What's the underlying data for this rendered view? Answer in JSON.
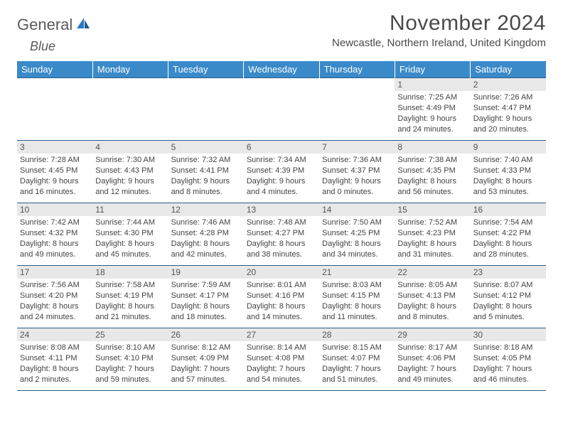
{
  "brand": {
    "word1": "General",
    "word2": "Blue"
  },
  "title": "November 2024",
  "location": "Newcastle, Northern Ireland, United Kingdom",
  "colors": {
    "header_bg": "#3a8ac9",
    "border": "#2a5d8a",
    "daynum_bg": "#e8e8e8",
    "text": "#444"
  },
  "weekdays": [
    "Sunday",
    "Monday",
    "Tuesday",
    "Wednesday",
    "Thursday",
    "Friday",
    "Saturday"
  ],
  "weeks": [
    [
      {
        "n": "",
        "sr": "",
        "ss": "",
        "dl": ""
      },
      {
        "n": "",
        "sr": "",
        "ss": "",
        "dl": ""
      },
      {
        "n": "",
        "sr": "",
        "ss": "",
        "dl": ""
      },
      {
        "n": "",
        "sr": "",
        "ss": "",
        "dl": ""
      },
      {
        "n": "",
        "sr": "",
        "ss": "",
        "dl": ""
      },
      {
        "n": "1",
        "sr": "Sunrise: 7:25 AM",
        "ss": "Sunset: 4:49 PM",
        "dl": "Daylight: 9 hours and 24 minutes."
      },
      {
        "n": "2",
        "sr": "Sunrise: 7:26 AM",
        "ss": "Sunset: 4:47 PM",
        "dl": "Daylight: 9 hours and 20 minutes."
      }
    ],
    [
      {
        "n": "3",
        "sr": "Sunrise: 7:28 AM",
        "ss": "Sunset: 4:45 PM",
        "dl": "Daylight: 9 hours and 16 minutes."
      },
      {
        "n": "4",
        "sr": "Sunrise: 7:30 AM",
        "ss": "Sunset: 4:43 PM",
        "dl": "Daylight: 9 hours and 12 minutes."
      },
      {
        "n": "5",
        "sr": "Sunrise: 7:32 AM",
        "ss": "Sunset: 4:41 PM",
        "dl": "Daylight: 9 hours and 8 minutes."
      },
      {
        "n": "6",
        "sr": "Sunrise: 7:34 AM",
        "ss": "Sunset: 4:39 PM",
        "dl": "Daylight: 9 hours and 4 minutes."
      },
      {
        "n": "7",
        "sr": "Sunrise: 7:36 AM",
        "ss": "Sunset: 4:37 PM",
        "dl": "Daylight: 9 hours and 0 minutes."
      },
      {
        "n": "8",
        "sr": "Sunrise: 7:38 AM",
        "ss": "Sunset: 4:35 PM",
        "dl": "Daylight: 8 hours and 56 minutes."
      },
      {
        "n": "9",
        "sr": "Sunrise: 7:40 AM",
        "ss": "Sunset: 4:33 PM",
        "dl": "Daylight: 8 hours and 53 minutes."
      }
    ],
    [
      {
        "n": "10",
        "sr": "Sunrise: 7:42 AM",
        "ss": "Sunset: 4:32 PM",
        "dl": "Daylight: 8 hours and 49 minutes."
      },
      {
        "n": "11",
        "sr": "Sunrise: 7:44 AM",
        "ss": "Sunset: 4:30 PM",
        "dl": "Daylight: 8 hours and 45 minutes."
      },
      {
        "n": "12",
        "sr": "Sunrise: 7:46 AM",
        "ss": "Sunset: 4:28 PM",
        "dl": "Daylight: 8 hours and 42 minutes."
      },
      {
        "n": "13",
        "sr": "Sunrise: 7:48 AM",
        "ss": "Sunset: 4:27 PM",
        "dl": "Daylight: 8 hours and 38 minutes."
      },
      {
        "n": "14",
        "sr": "Sunrise: 7:50 AM",
        "ss": "Sunset: 4:25 PM",
        "dl": "Daylight: 8 hours and 34 minutes."
      },
      {
        "n": "15",
        "sr": "Sunrise: 7:52 AM",
        "ss": "Sunset: 4:23 PM",
        "dl": "Daylight: 8 hours and 31 minutes."
      },
      {
        "n": "16",
        "sr": "Sunrise: 7:54 AM",
        "ss": "Sunset: 4:22 PM",
        "dl": "Daylight: 8 hours and 28 minutes."
      }
    ],
    [
      {
        "n": "17",
        "sr": "Sunrise: 7:56 AM",
        "ss": "Sunset: 4:20 PM",
        "dl": "Daylight: 8 hours and 24 minutes."
      },
      {
        "n": "18",
        "sr": "Sunrise: 7:58 AM",
        "ss": "Sunset: 4:19 PM",
        "dl": "Daylight: 8 hours and 21 minutes."
      },
      {
        "n": "19",
        "sr": "Sunrise: 7:59 AM",
        "ss": "Sunset: 4:17 PM",
        "dl": "Daylight: 8 hours and 18 minutes."
      },
      {
        "n": "20",
        "sr": "Sunrise: 8:01 AM",
        "ss": "Sunset: 4:16 PM",
        "dl": "Daylight: 8 hours and 14 minutes."
      },
      {
        "n": "21",
        "sr": "Sunrise: 8:03 AM",
        "ss": "Sunset: 4:15 PM",
        "dl": "Daylight: 8 hours and 11 minutes."
      },
      {
        "n": "22",
        "sr": "Sunrise: 8:05 AM",
        "ss": "Sunset: 4:13 PM",
        "dl": "Daylight: 8 hours and 8 minutes."
      },
      {
        "n": "23",
        "sr": "Sunrise: 8:07 AM",
        "ss": "Sunset: 4:12 PM",
        "dl": "Daylight: 8 hours and 5 minutes."
      }
    ],
    [
      {
        "n": "24",
        "sr": "Sunrise: 8:08 AM",
        "ss": "Sunset: 4:11 PM",
        "dl": "Daylight: 8 hours and 2 minutes."
      },
      {
        "n": "25",
        "sr": "Sunrise: 8:10 AM",
        "ss": "Sunset: 4:10 PM",
        "dl": "Daylight: 7 hours and 59 minutes."
      },
      {
        "n": "26",
        "sr": "Sunrise: 8:12 AM",
        "ss": "Sunset: 4:09 PM",
        "dl": "Daylight: 7 hours and 57 minutes."
      },
      {
        "n": "27",
        "sr": "Sunrise: 8:14 AM",
        "ss": "Sunset: 4:08 PM",
        "dl": "Daylight: 7 hours and 54 minutes."
      },
      {
        "n": "28",
        "sr": "Sunrise: 8:15 AM",
        "ss": "Sunset: 4:07 PM",
        "dl": "Daylight: 7 hours and 51 minutes."
      },
      {
        "n": "29",
        "sr": "Sunrise: 8:17 AM",
        "ss": "Sunset: 4:06 PM",
        "dl": "Daylight: 7 hours and 49 minutes."
      },
      {
        "n": "30",
        "sr": "Sunrise: 8:18 AM",
        "ss": "Sunset: 4:05 PM",
        "dl": "Daylight: 7 hours and 46 minutes."
      }
    ]
  ]
}
